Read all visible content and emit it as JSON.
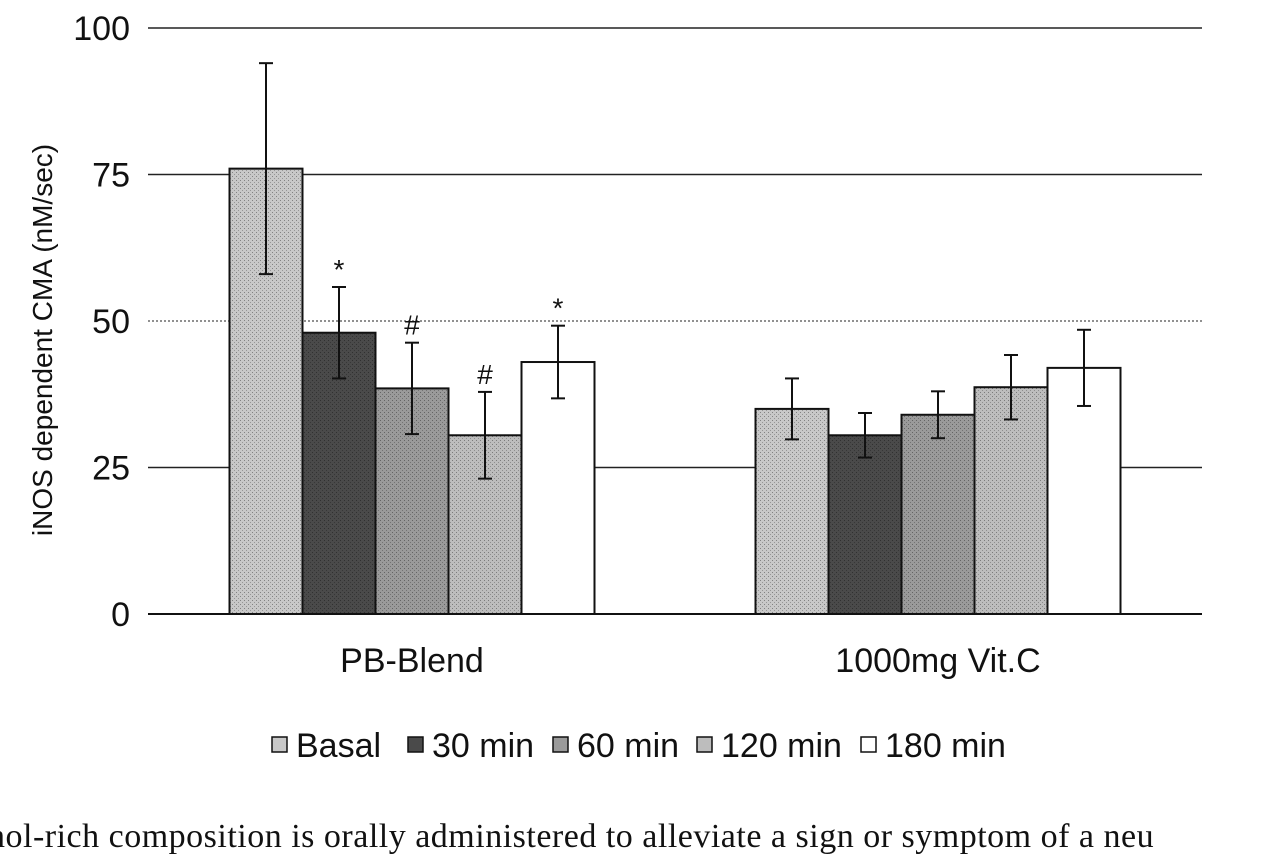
{
  "chart_data": {
    "type": "bar",
    "title": "",
    "xlabel": "",
    "ylabel": "iNOS dependent CMA (nM/sec)",
    "ylim": [
      0,
      100
    ],
    "yticks": [
      "0",
      "25",
      "50",
      "75",
      "100"
    ],
    "categories": [
      "PB-Blend",
      "1000mg Vit.C"
    ],
    "series": [
      {
        "name": "Basal",
        "color": "#c8c8c8",
        "values": [
          76,
          35
        ],
        "errors": [
          18,
          5.2
        ],
        "annotations": [
          "",
          ""
        ]
      },
      {
        "name": "30 min",
        "color": "#4a4a4a",
        "values": [
          48,
          30.5
        ],
        "errors": [
          7.8,
          3.8
        ],
        "annotations": [
          "*",
          ""
        ]
      },
      {
        "name": "60 min",
        "color": "#9a9a9a",
        "values": [
          38.5,
          34
        ],
        "errors": [
          7.8,
          4.0
        ],
        "annotations": [
          "#",
          ""
        ]
      },
      {
        "name": "120 min",
        "color": "#bdbdbd",
        "values": [
          30.5,
          38.7
        ],
        "errors": [
          7.4,
          5.5
        ],
        "annotations": [
          "#",
          ""
        ]
      },
      {
        "name": "180 min",
        "color": "#ffffff",
        "values": [
          43,
          42
        ],
        "errors": [
          6.2,
          6.5
        ],
        "annotations": [
          "*",
          ""
        ]
      }
    ],
    "gridlines": true,
    "legend_position": "bottom"
  },
  "caption": "nol-rich composition is orally administered to alleviate a sign or symptom of a neu"
}
